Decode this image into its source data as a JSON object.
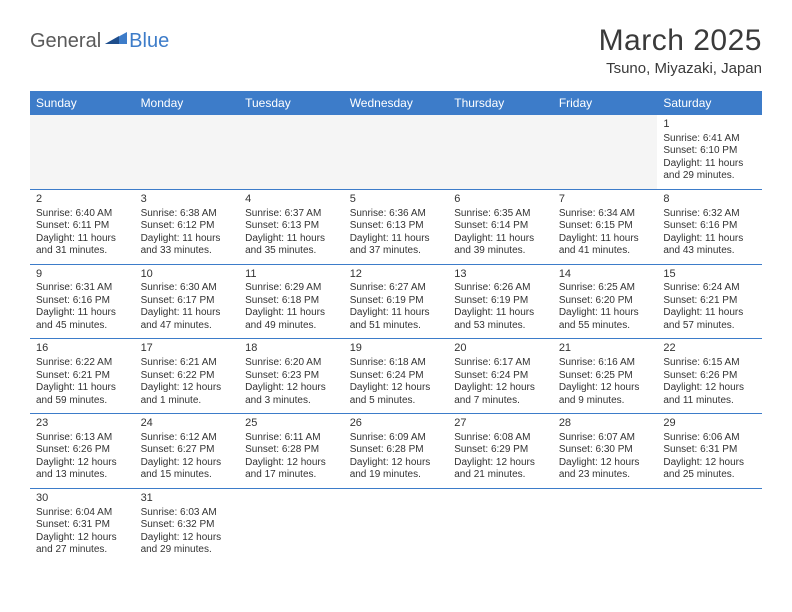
{
  "logo": {
    "general": "General",
    "blue": "Blue"
  },
  "title": "March 2025",
  "location": "Tsuno, Miyazaki, Japan",
  "colors": {
    "header_bg": "#3d7cc9",
    "header_text": "#ffffff",
    "rule": "#3d7cc9",
    "body_text": "#333333",
    "empty_bg": "#f5f5f5"
  },
  "days_of_week": [
    "Sunday",
    "Monday",
    "Tuesday",
    "Wednesday",
    "Thursday",
    "Friday",
    "Saturday"
  ],
  "weeks": [
    [
      null,
      null,
      null,
      null,
      null,
      null,
      {
        "n": "1",
        "sunrise": "Sunrise: 6:41 AM",
        "sunset": "Sunset: 6:10 PM",
        "daylight1": "Daylight: 11 hours",
        "daylight2": "and 29 minutes."
      }
    ],
    [
      {
        "n": "2",
        "sunrise": "Sunrise: 6:40 AM",
        "sunset": "Sunset: 6:11 PM",
        "daylight1": "Daylight: 11 hours",
        "daylight2": "and 31 minutes."
      },
      {
        "n": "3",
        "sunrise": "Sunrise: 6:38 AM",
        "sunset": "Sunset: 6:12 PM",
        "daylight1": "Daylight: 11 hours",
        "daylight2": "and 33 minutes."
      },
      {
        "n": "4",
        "sunrise": "Sunrise: 6:37 AM",
        "sunset": "Sunset: 6:13 PM",
        "daylight1": "Daylight: 11 hours",
        "daylight2": "and 35 minutes."
      },
      {
        "n": "5",
        "sunrise": "Sunrise: 6:36 AM",
        "sunset": "Sunset: 6:13 PM",
        "daylight1": "Daylight: 11 hours",
        "daylight2": "and 37 minutes."
      },
      {
        "n": "6",
        "sunrise": "Sunrise: 6:35 AM",
        "sunset": "Sunset: 6:14 PM",
        "daylight1": "Daylight: 11 hours",
        "daylight2": "and 39 minutes."
      },
      {
        "n": "7",
        "sunrise": "Sunrise: 6:34 AM",
        "sunset": "Sunset: 6:15 PM",
        "daylight1": "Daylight: 11 hours",
        "daylight2": "and 41 minutes."
      },
      {
        "n": "8",
        "sunrise": "Sunrise: 6:32 AM",
        "sunset": "Sunset: 6:16 PM",
        "daylight1": "Daylight: 11 hours",
        "daylight2": "and 43 minutes."
      }
    ],
    [
      {
        "n": "9",
        "sunrise": "Sunrise: 6:31 AM",
        "sunset": "Sunset: 6:16 PM",
        "daylight1": "Daylight: 11 hours",
        "daylight2": "and 45 minutes."
      },
      {
        "n": "10",
        "sunrise": "Sunrise: 6:30 AM",
        "sunset": "Sunset: 6:17 PM",
        "daylight1": "Daylight: 11 hours",
        "daylight2": "and 47 minutes."
      },
      {
        "n": "11",
        "sunrise": "Sunrise: 6:29 AM",
        "sunset": "Sunset: 6:18 PM",
        "daylight1": "Daylight: 11 hours",
        "daylight2": "and 49 minutes."
      },
      {
        "n": "12",
        "sunrise": "Sunrise: 6:27 AM",
        "sunset": "Sunset: 6:19 PM",
        "daylight1": "Daylight: 11 hours",
        "daylight2": "and 51 minutes."
      },
      {
        "n": "13",
        "sunrise": "Sunrise: 6:26 AM",
        "sunset": "Sunset: 6:19 PM",
        "daylight1": "Daylight: 11 hours",
        "daylight2": "and 53 minutes."
      },
      {
        "n": "14",
        "sunrise": "Sunrise: 6:25 AM",
        "sunset": "Sunset: 6:20 PM",
        "daylight1": "Daylight: 11 hours",
        "daylight2": "and 55 minutes."
      },
      {
        "n": "15",
        "sunrise": "Sunrise: 6:24 AM",
        "sunset": "Sunset: 6:21 PM",
        "daylight1": "Daylight: 11 hours",
        "daylight2": "and 57 minutes."
      }
    ],
    [
      {
        "n": "16",
        "sunrise": "Sunrise: 6:22 AM",
        "sunset": "Sunset: 6:21 PM",
        "daylight1": "Daylight: 11 hours",
        "daylight2": "and 59 minutes."
      },
      {
        "n": "17",
        "sunrise": "Sunrise: 6:21 AM",
        "sunset": "Sunset: 6:22 PM",
        "daylight1": "Daylight: 12 hours",
        "daylight2": "and 1 minute."
      },
      {
        "n": "18",
        "sunrise": "Sunrise: 6:20 AM",
        "sunset": "Sunset: 6:23 PM",
        "daylight1": "Daylight: 12 hours",
        "daylight2": "and 3 minutes."
      },
      {
        "n": "19",
        "sunrise": "Sunrise: 6:18 AM",
        "sunset": "Sunset: 6:24 PM",
        "daylight1": "Daylight: 12 hours",
        "daylight2": "and 5 minutes."
      },
      {
        "n": "20",
        "sunrise": "Sunrise: 6:17 AM",
        "sunset": "Sunset: 6:24 PM",
        "daylight1": "Daylight: 12 hours",
        "daylight2": "and 7 minutes."
      },
      {
        "n": "21",
        "sunrise": "Sunrise: 6:16 AM",
        "sunset": "Sunset: 6:25 PM",
        "daylight1": "Daylight: 12 hours",
        "daylight2": "and 9 minutes."
      },
      {
        "n": "22",
        "sunrise": "Sunrise: 6:15 AM",
        "sunset": "Sunset: 6:26 PM",
        "daylight1": "Daylight: 12 hours",
        "daylight2": "and 11 minutes."
      }
    ],
    [
      {
        "n": "23",
        "sunrise": "Sunrise: 6:13 AM",
        "sunset": "Sunset: 6:26 PM",
        "daylight1": "Daylight: 12 hours",
        "daylight2": "and 13 minutes."
      },
      {
        "n": "24",
        "sunrise": "Sunrise: 6:12 AM",
        "sunset": "Sunset: 6:27 PM",
        "daylight1": "Daylight: 12 hours",
        "daylight2": "and 15 minutes."
      },
      {
        "n": "25",
        "sunrise": "Sunrise: 6:11 AM",
        "sunset": "Sunset: 6:28 PM",
        "daylight1": "Daylight: 12 hours",
        "daylight2": "and 17 minutes."
      },
      {
        "n": "26",
        "sunrise": "Sunrise: 6:09 AM",
        "sunset": "Sunset: 6:28 PM",
        "daylight1": "Daylight: 12 hours",
        "daylight2": "and 19 minutes."
      },
      {
        "n": "27",
        "sunrise": "Sunrise: 6:08 AM",
        "sunset": "Sunset: 6:29 PM",
        "daylight1": "Daylight: 12 hours",
        "daylight2": "and 21 minutes."
      },
      {
        "n": "28",
        "sunrise": "Sunrise: 6:07 AM",
        "sunset": "Sunset: 6:30 PM",
        "daylight1": "Daylight: 12 hours",
        "daylight2": "and 23 minutes."
      },
      {
        "n": "29",
        "sunrise": "Sunrise: 6:06 AM",
        "sunset": "Sunset: 6:31 PM",
        "daylight1": "Daylight: 12 hours",
        "daylight2": "and 25 minutes."
      }
    ],
    [
      {
        "n": "30",
        "sunrise": "Sunrise: 6:04 AM",
        "sunset": "Sunset: 6:31 PM",
        "daylight1": "Daylight: 12 hours",
        "daylight2": "and 27 minutes."
      },
      {
        "n": "31",
        "sunrise": "Sunrise: 6:03 AM",
        "sunset": "Sunset: 6:32 PM",
        "daylight1": "Daylight: 12 hours",
        "daylight2": "and 29 minutes."
      },
      null,
      null,
      null,
      null,
      null
    ]
  ]
}
